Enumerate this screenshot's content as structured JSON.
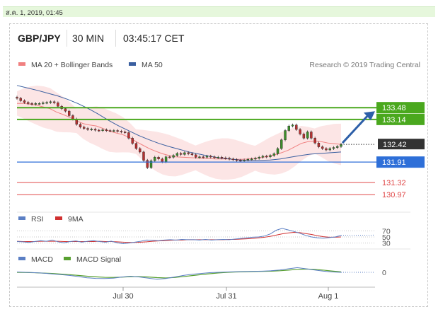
{
  "header": {
    "date": "ส.ค. 1, 2019, 01:45",
    "pair": "GBP/JPY",
    "timeframe": "30 MIN",
    "clock": "03:45:17 CET"
  },
  "chart_data": {
    "type": "line",
    "legend": [
      {
        "name": "MA 20 + Bollinger Bands",
        "color": "#f08080"
      },
      {
        "name": "MA 50",
        "color": "#3a5fa0"
      }
    ],
    "credit": "Research © 2019 Trading Central",
    "x_ticks": [
      "Jul 30",
      "Jul 31",
      "Aug 1"
    ],
    "price_ylim": [
      130.75,
      134.3
    ],
    "levels": [
      {
        "label": "133.48",
        "value": 133.48,
        "style": "resistance",
        "color": "#4aa81e"
      },
      {
        "label": "133.14",
        "value": 133.14,
        "style": "resistance",
        "color": "#4aa81e"
      },
      {
        "label": "132.42",
        "value": 132.42,
        "style": "current",
        "color": "#333333"
      },
      {
        "label": "131.91",
        "value": 131.91,
        "style": "support",
        "color": "#2e6fd8"
      },
      {
        "label": "131.32",
        "value": 131.32,
        "style": "support",
        "color": "#e04848"
      },
      {
        "label": "130.97",
        "value": 130.97,
        "style": "support",
        "color": "#e04848"
      }
    ],
    "price_close": [
      133.75,
      133.68,
      133.63,
      133.6,
      133.58,
      133.6,
      133.6,
      133.62,
      133.63,
      133.65,
      133.62,
      133.52,
      133.45,
      133.38,
      133.25,
      133.15,
      133.0,
      132.92,
      132.88,
      132.85,
      132.86,
      132.83,
      132.82,
      132.84,
      132.82,
      132.81,
      132.82,
      132.8,
      132.78,
      132.76,
      132.6,
      132.45,
      132.3,
      132.2,
      131.96,
      131.75,
      131.95,
      132.05,
      132.0,
      131.92,
      132.06,
      132.05,
      132.1,
      132.16,
      132.13,
      132.18,
      132.15,
      132.12,
      132.05,
      132.06,
      132.05,
      132.08,
      132.06,
      132.04,
      132.05,
      132.03,
      132.02,
      132.0,
      131.98,
      131.96,
      131.95,
      131.97,
      131.99,
      132.0,
      132.02,
      132.05,
      132.08,
      132.06,
      132.1,
      132.15,
      132.3,
      132.55,
      132.82,
      132.95,
      132.98,
      132.85,
      132.72,
      132.6,
      132.78,
      132.6,
      132.46,
      132.35,
      132.3,
      132.26,
      132.3,
      132.33,
      132.36,
      132.42
    ],
    "ma20": [
      133.6,
      133.6,
      133.58,
      133.55,
      133.5,
      133.45,
      133.35,
      133.28,
      133.2,
      133.1,
      133.02,
      132.98,
      132.95,
      132.88,
      132.8,
      132.75,
      132.7,
      132.62,
      132.5,
      132.4,
      132.3,
      132.22,
      132.15,
      132.1,
      132.06,
      132.05,
      132.04,
      132.03,
      132.02,
      132.01,
      132.0,
      132.0,
      132.0,
      131.99,
      131.99,
      132.0,
      132.02,
      132.04,
      132.08,
      132.12,
      132.18,
      132.25,
      132.35,
      132.45,
      132.5,
      132.52,
      132.5,
      132.46,
      132.44,
      132.42
    ],
    "ma50": [
      134.12,
      134.05,
      133.98,
      133.9,
      133.82,
      133.72,
      133.6,
      133.46,
      133.3,
      133.12,
      132.96,
      132.82,
      132.68,
      132.56,
      132.45,
      132.36,
      132.28,
      132.2,
      132.14,
      132.08,
      132.03,
      132.0,
      131.97,
      131.96,
      131.96,
      131.97,
      132.0,
      132.05,
      132.1,
      132.14,
      132.16,
      132.18,
      132.2
    ],
    "forecast_target": 133.48,
    "rsi": {
      "legend": [
        {
          "name": "RSI",
          "color": "#5b7fc4"
        },
        {
          "name": "9MA",
          "color": "#d03030"
        }
      ],
      "ticks": [
        "70",
        "50",
        "30"
      ],
      "ylim": [
        20,
        80
      ],
      "rsi_values": [
        35,
        34,
        32,
        35,
        38,
        36,
        40,
        34,
        31,
        35,
        37,
        33,
        36,
        38,
        35,
        33,
        36,
        31,
        28,
        30,
        33,
        36,
        40,
        39,
        38,
        40,
        41,
        40,
        42,
        41,
        41,
        40,
        42,
        40,
        41,
        42,
        41,
        43,
        45,
        47,
        49,
        50,
        53,
        60,
        72,
        78,
        73,
        68,
        62,
        55,
        50,
        47,
        46,
        48,
        50,
        55
      ],
      "ma9_values": [
        36,
        35,
        35,
        35,
        36,
        36,
        36,
        36,
        35,
        35,
        35,
        35,
        35,
        35,
        36,
        35,
        35,
        34,
        33,
        32,
        32,
        33,
        34,
        36,
        37,
        38,
        39,
        40,
        40,
        41,
        41,
        41,
        41,
        41,
        41,
        41,
        42,
        42,
        43,
        44,
        45,
        47,
        49,
        52,
        56,
        60,
        63,
        65,
        64,
        61,
        58,
        54,
        51,
        49,
        49,
        50
      ]
    },
    "macd": {
      "legend": [
        {
          "name": "MACD",
          "color": "#5b7fc4"
        },
        {
          "name": "MACD Signal",
          "color": "#58a030"
        }
      ],
      "ticks": [
        "0"
      ],
      "ylim": [
        -1,
        1
      ],
      "macd_values": [
        0.05,
        0.0,
        -0.05,
        -0.1,
        -0.2,
        -0.3,
        -0.4,
        -0.55,
        -0.7,
        -0.78,
        -0.8,
        -0.75,
        -0.6,
        -0.5,
        -0.6,
        -0.75,
        -0.9,
        -0.8,
        -0.6,
        -0.4,
        -0.25,
        -0.15,
        -0.05,
        0.0,
        0.05,
        0.08,
        0.1,
        0.12,
        0.15,
        0.2,
        0.3,
        0.45,
        0.6,
        0.45,
        0.3,
        0.15,
        0.05,
        0.0
      ],
      "signal_values": [
        0.0,
        -0.02,
        -0.05,
        -0.1,
        -0.15,
        -0.22,
        -0.3,
        -0.4,
        -0.5,
        -0.58,
        -0.64,
        -0.66,
        -0.62,
        -0.56,
        -0.55,
        -0.6,
        -0.68,
        -0.72,
        -0.66,
        -0.55,
        -0.42,
        -0.3,
        -0.18,
        -0.08,
        0.0,
        0.04,
        0.07,
        0.1,
        0.12,
        0.15,
        0.2,
        0.28,
        0.38,
        0.42,
        0.38,
        0.28,
        0.16,
        0.06
      ]
    }
  }
}
